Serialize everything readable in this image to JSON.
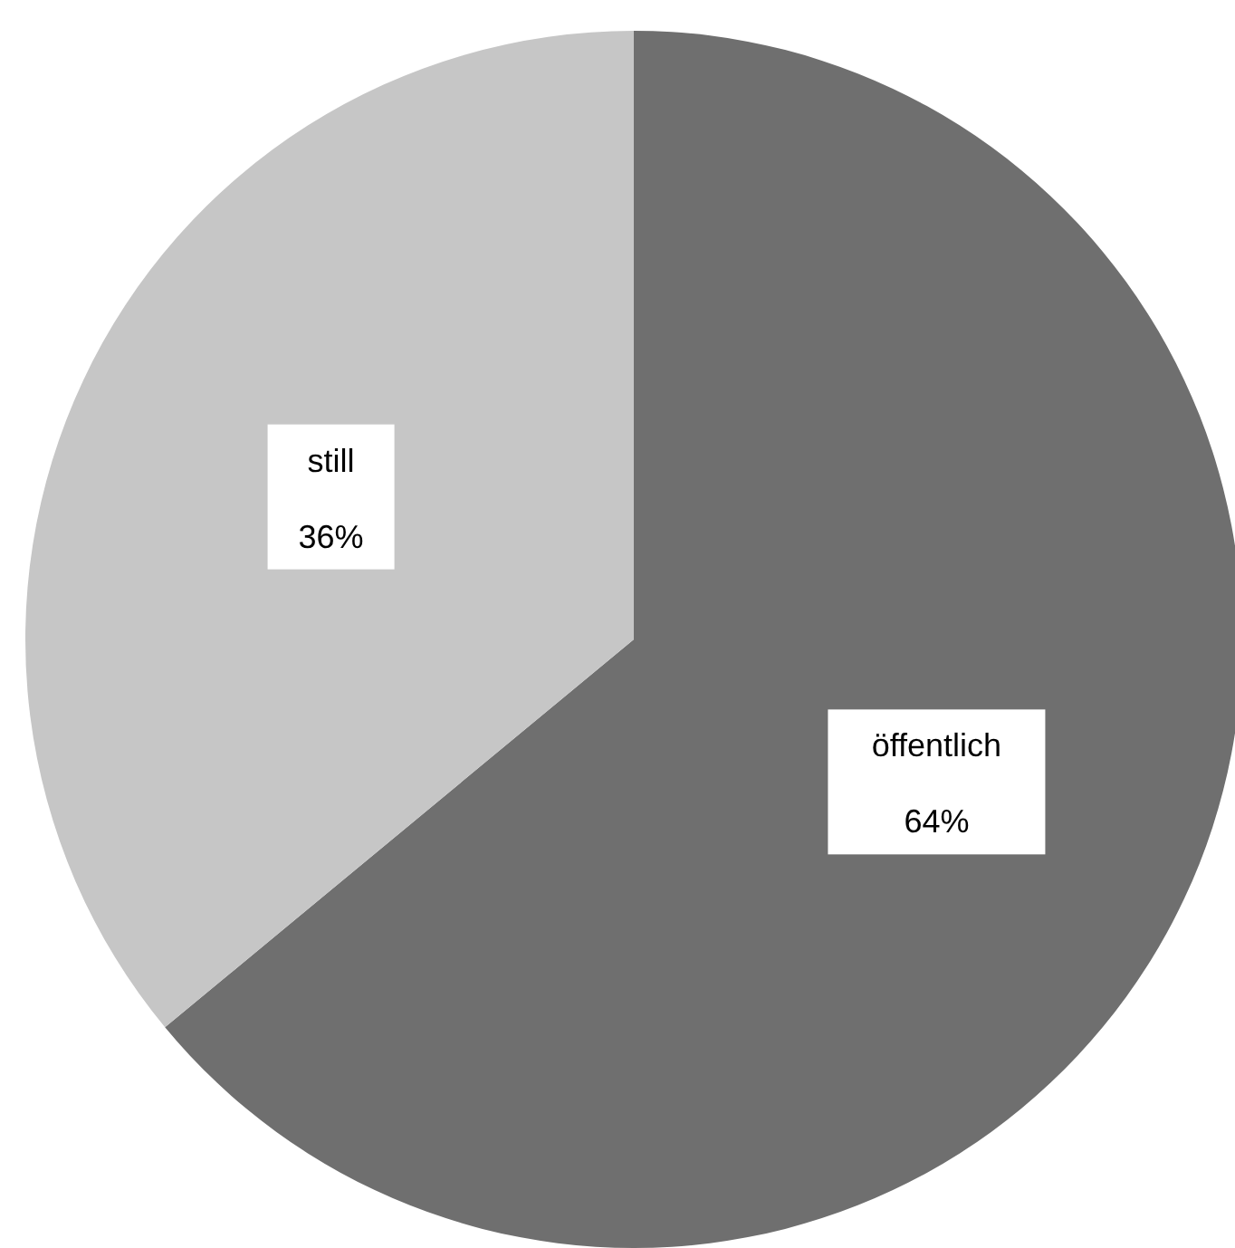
{
  "chart_data": {
    "type": "pie",
    "categories": [
      "öffentlich",
      "still"
    ],
    "values": [
      64,
      36
    ],
    "colors": [
      "#6f6f6f",
      "#c6c6c6"
    ],
    "value_labels": [
      "64%",
      "36%"
    ],
    "legend": false
  }
}
